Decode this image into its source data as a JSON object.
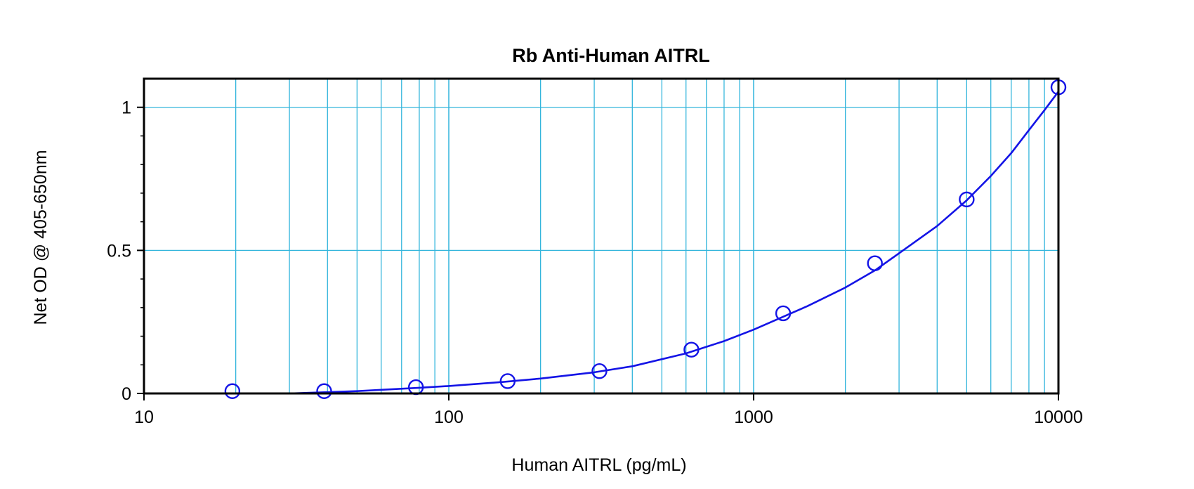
{
  "chart_data": {
    "type": "scatter",
    "title": "Rb Anti-Human AITRL",
    "xlabel": "Human AITRL (pg/mL)",
    "ylabel": "Net OD @ 405-650nm",
    "x_scale": "log",
    "xlim": [
      10,
      10000
    ],
    "ylim": [
      0,
      1.1
    ],
    "x_ticks": [
      10,
      100,
      1000,
      10000
    ],
    "x_tick_labels": [
      "10",
      "100",
      "1000",
      "10000"
    ],
    "y_ticks": [
      0,
      0.5,
      1
    ],
    "y_tick_labels": [
      "0",
      "0.5",
      "1"
    ],
    "y_minor_ticks": [
      0.1,
      0.2,
      0.3,
      0.4,
      0.6,
      0.7,
      0.8,
      0.9
    ],
    "grid": true,
    "series": [
      {
        "marker": "open-circle",
        "x": [
          19.5,
          39,
          78,
          156,
          312,
          625,
          1250,
          2500,
          5000,
          10000
        ],
        "y": [
          0.008,
          0.008,
          0.022,
          0.043,
          0.078,
          0.153,
          0.28,
          0.455,
          0.678,
          1.07
        ]
      }
    ],
    "fit_curve": {
      "style": "line",
      "x": [
        30,
        50,
        80,
        100,
        150,
        200,
        300,
        400,
        600,
        800,
        1000,
        1500,
        2000,
        2500,
        3000,
        4000,
        5000,
        6000,
        7000,
        8000,
        9000,
        10000
      ],
      "y": [
        0.0,
        0.008,
        0.02,
        0.026,
        0.04,
        0.052,
        0.074,
        0.095,
        0.14,
        0.183,
        0.223,
        0.305,
        0.37,
        0.43,
        0.49,
        0.585,
        0.675,
        0.76,
        0.84,
        0.92,
        0.99,
        1.055
      ]
    },
    "colors": {
      "series": "#1414e6",
      "grid": "#33b5dc",
      "frame": "#000000"
    }
  }
}
